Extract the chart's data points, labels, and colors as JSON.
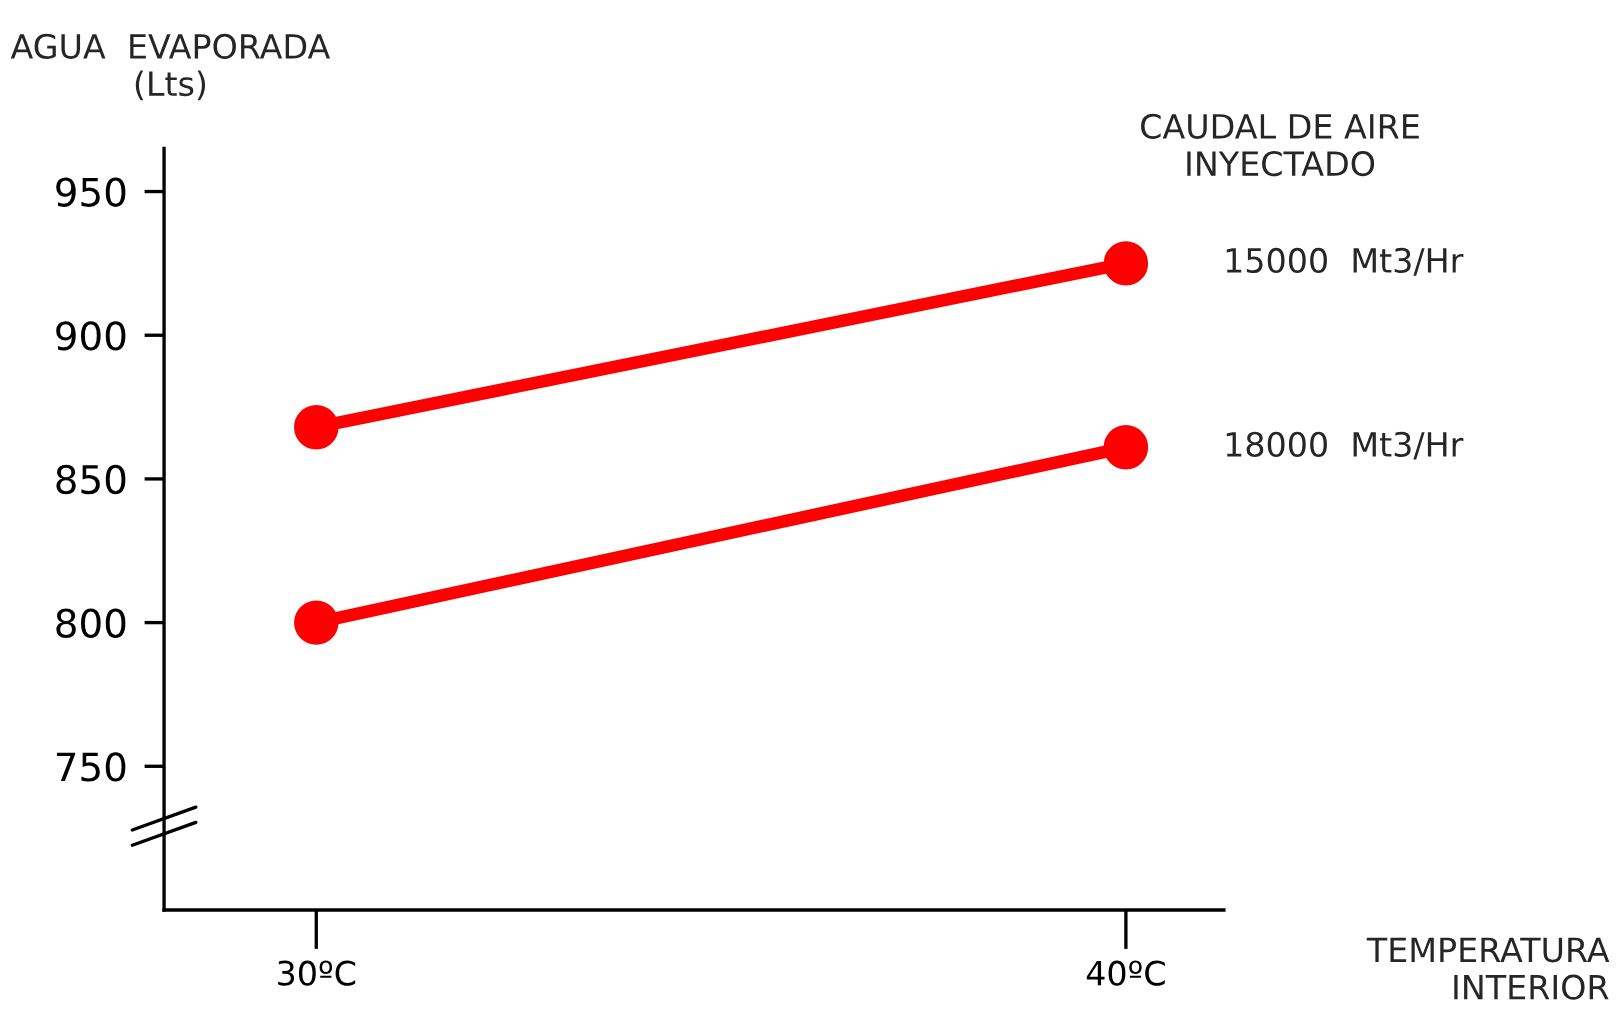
{
  "chart_data": {
    "type": "line",
    "xlabel": "TEMPERATURA\nINTERIOR",
    "ylabel": "AGUA  EVAPORADA\n(Lts)",
    "legend_title": "CAUDAL DE AIRE\nINYECTADO",
    "categories": [
      "30ºC",
      "40ºC"
    ],
    "series": [
      {
        "name": "15000  Mt3/Hr",
        "color": "#ff0000",
        "values": [
          868,
          925
        ]
      },
      {
        "name": "18000  Mt3/Hr",
        "color": "#ff0000",
        "values": [
          800,
          861
        ]
      }
    ],
    "ylim": [
      700,
      965
    ],
    "yticks": [
      750,
      800,
      850,
      900,
      950
    ],
    "grid": false,
    "marker": "circle",
    "line_style": "solid"
  }
}
